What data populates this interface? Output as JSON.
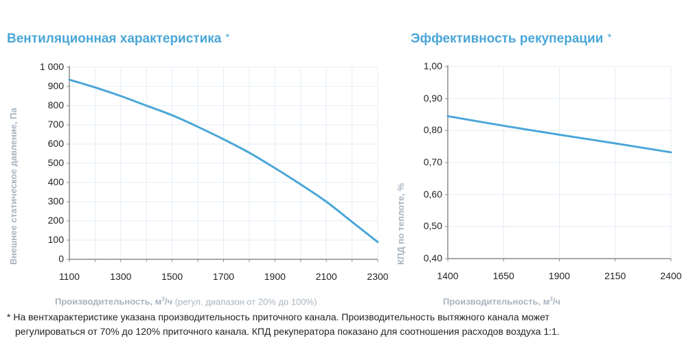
{
  "left": {
    "title": "Вентиляционная характеристика",
    "star": "*",
    "ylabel": "Внешнее статическое давление, Па",
    "xlabel_bold": "Производительность, м",
    "xlabel_sup": "3",
    "xlabel_unit": "/ч",
    "xlabel_note": " (регул. диапазон от 20% до 100%)",
    "yticks": [
      "1 000",
      "900",
      "800",
      "700",
      "600",
      "500",
      "400",
      "300",
      "200",
      "100",
      "0"
    ],
    "xticks": [
      "1100",
      "1300",
      "1500",
      "1700",
      "1900",
      "2100",
      "2300"
    ]
  },
  "right": {
    "title": "Эффективность рекуперации",
    "star": "*",
    "ylabel": "КПД по теплоте, %",
    "xlabel_bold": "Производительность, м",
    "xlabel_sup": "3",
    "xlabel_unit": "/ч",
    "yticks": [
      "1,00",
      "0,90",
      "0,80",
      "0,70",
      "0,60",
      "0,50",
      "0,40"
    ],
    "xticks": [
      "1400",
      "1650",
      "1900",
      "2150",
      "2400"
    ]
  },
  "footer": {
    "line1": "* На вентхарактеристике указана производительность приточного канала. Производительность вытяжного канала может",
    "line2": "регулироваться от 70% до 120% приточного канала. КПД рекуператора показано для соотношения расходов воздуха 1:1."
  },
  "colors": {
    "accent": "#4aa6d8",
    "line": "#4aa6d8",
    "grid": "#e3ecf4",
    "axis_label": "#a9b4c0"
  },
  "chart_data": [
    {
      "type": "line",
      "title": "Вентиляционная характеристика *",
      "xlabel": "Производительность, м³/ч (регул. диапазон от 20% до 100%)",
      "ylabel": "Внешнее статическое давление, Па",
      "xlim": [
        1100,
        2300
      ],
      "ylim": [
        0,
        1000
      ],
      "grid": true,
      "x": [
        1100,
        1200,
        1300,
        1400,
        1500,
        1600,
        1700,
        1800,
        1900,
        2000,
        2100,
        2200,
        2300
      ],
      "series": [
        {
          "name": "Давление",
          "values": [
            935,
            895,
            850,
            800,
            750,
            690,
            625,
            555,
            475,
            390,
            300,
            195,
            90
          ]
        }
      ]
    },
    {
      "type": "line",
      "title": "Эффективность рекуперации *",
      "xlabel": "Производительность, м³/ч",
      "ylabel": "КПД по теплоте, %",
      "xlim": [
        1400,
        2400
      ],
      "ylim": [
        0.4,
        1.0
      ],
      "grid": true,
      "x": [
        1400,
        1650,
        1900,
        2150,
        2400
      ],
      "series": [
        {
          "name": "КПД",
          "values": [
            0.845,
            0.815,
            0.787,
            0.76,
            0.732
          ]
        }
      ]
    }
  ]
}
